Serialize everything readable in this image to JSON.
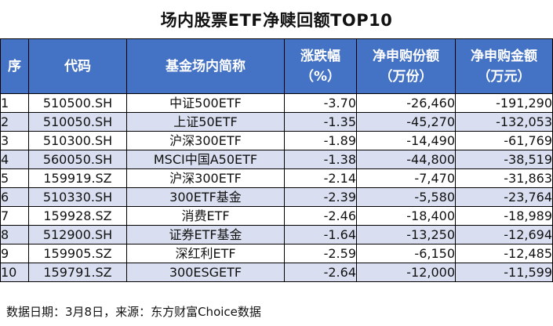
{
  "title": "场内股票ETF净赎回额TOP10",
  "table": {
    "headers": {
      "rank": "序",
      "code": "代码",
      "name": "基金场内简称",
      "change_l1": "涨跌幅",
      "change_l2": "（%）",
      "netsub_l1": "净申购份额",
      "netsub_l2": "（万份）",
      "netamt_l1": "净申购金额",
      "netamt_l2": "（万元）"
    },
    "rows": [
      {
        "rank": "1",
        "code": "510500.SH",
        "name": "中证500ETF",
        "change": "-3.70",
        "net_shares": "-26,460",
        "net_amount": "-191,290"
      },
      {
        "rank": "2",
        "code": "510050.SH",
        "name": "上证50ETF",
        "change": "-1.35",
        "net_shares": "-45,270",
        "net_amount": "-132,053"
      },
      {
        "rank": "3",
        "code": "510300.SH",
        "name": "沪深300ETF",
        "change": "-1.89",
        "net_shares": "-14,490",
        "net_amount": "-61,769"
      },
      {
        "rank": "4",
        "code": "560050.SH",
        "name": "MSCI中国A50ETF",
        "change": "-1.38",
        "net_shares": "-44,800",
        "net_amount": "-38,519"
      },
      {
        "rank": "5",
        "code": "159919.SZ",
        "name": "沪深300ETF",
        "change": "-2.14",
        "net_shares": "-7,470",
        "net_amount": "-31,863"
      },
      {
        "rank": "6",
        "code": "510330.SH",
        "name": "300ETF基金",
        "change": "-2.39",
        "net_shares": "-5,580",
        "net_amount": "-23,764"
      },
      {
        "rank": "7",
        "code": "159928.SZ",
        "name": "消费ETF",
        "change": "-2.46",
        "net_shares": "-18,400",
        "net_amount": "-18,989"
      },
      {
        "rank": "8",
        "code": "512900.SH",
        "name": "证券ETF基金",
        "change": "-1.64",
        "net_shares": "-13,250",
        "net_amount": "-12,694"
      },
      {
        "rank": "9",
        "code": "159905.SZ",
        "name": "深红利ETF",
        "change": "-2.59",
        "net_shares": "-6,150",
        "net_amount": "-12,485"
      },
      {
        "rank": "10",
        "code": "159791.SZ",
        "name": "300ESGETF",
        "change": "-2.64",
        "net_shares": "-12,000",
        "net_amount": "-11,599"
      }
    ]
  },
  "footer": "数据日期：3月8日，来源：东方财富Choice数据",
  "colors": {
    "header_bg": "#4472c4",
    "header_text": "#ffffff",
    "stripe_bg": "#d9dff0"
  }
}
